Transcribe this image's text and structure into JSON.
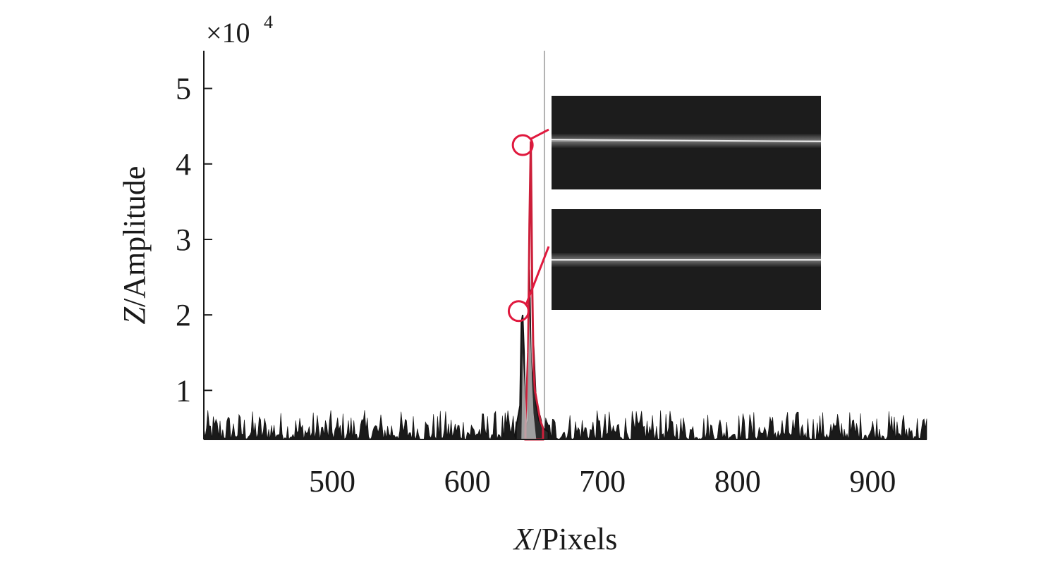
{
  "chart_data": {
    "type": "line",
    "x_scale_note": "500",
    "scale_factor": {
      "base": "×10",
      "exponent": "4"
    },
    "xlabel": {
      "italic": "X",
      "rest": "/Pixels"
    },
    "ylabel": {
      "italic": "Z",
      "rest": "/Amplitude"
    },
    "xlim": [
      405,
      940
    ],
    "ylim": [
      0.35,
      5.5
    ],
    "x_ticks": [
      {
        "value": 500,
        "label": "500"
      },
      {
        "value": 600,
        "label": "600"
      },
      {
        "value": 700,
        "label": "700"
      },
      {
        "value": 800,
        "label": "800"
      },
      {
        "value": 900,
        "label": "900"
      }
    ],
    "y_ticks": [
      {
        "value": 1,
        "label": "1"
      },
      {
        "value": 2,
        "label": "2"
      },
      {
        "value": 3,
        "label": "3"
      },
      {
        "value": 4,
        "label": "4"
      },
      {
        "value": 5,
        "label": "5"
      }
    ],
    "baseline": 0.35,
    "noise_max": 0.65,
    "series": [
      {
        "role": "black-profile",
        "color": "#111111",
        "x": [
          636,
          639,
          640,
          641,
          642,
          643,
          645,
          646,
          647,
          648,
          649,
          650,
          651,
          653,
          656,
          660
        ],
        "y": [
          0.5,
          0.8,
          1.9,
          2.0,
          1.5,
          0.5,
          0.6,
          2.6,
          1.5,
          0.9,
          1.6,
          1.2,
          0.8,
          0.6,
          0.5,
          0.45
        ]
      },
      {
        "role": "red-profile",
        "color": "#cc1f3a",
        "x": [
          643,
          645,
          646,
          647,
          648,
          649,
          650,
          652,
          654,
          656
        ],
        "y": [
          0.5,
          1.5,
          3.2,
          4.3,
          2.4,
          1.3,
          1.0,
          0.8,
          0.6,
          0.5
        ]
      }
    ],
    "peak_markers": [
      {
        "x": 641,
        "y": 4.25,
        "color": "#e0193e"
      },
      {
        "x": 638,
        "y": 2.05,
        "color": "#e0193e"
      }
    ],
    "secondary_line_x": 657,
    "inset_images": [
      {
        "role": "top-inset",
        "streak_center": 0.47
      },
      {
        "role": "bottom-inset",
        "streak_center": 0.5
      }
    ],
    "accent_color": "#e0193e"
  }
}
